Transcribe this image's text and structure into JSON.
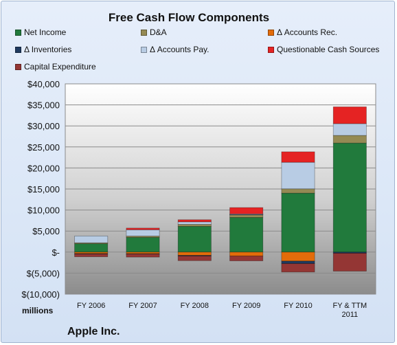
{
  "title": "Free Cash Flow Components",
  "units_label": "millions",
  "company": "Apple Inc.",
  "colors": {
    "net_income": "#217a3c",
    "da": "#948a54",
    "accounts_rec": "#e36c0a",
    "inventories": "#1f3a5f",
    "accounts_pay": "#b8cce4",
    "questionable": "#e52323",
    "capex": "#943634"
  },
  "legend": [
    {
      "name": "Net Income",
      "color_key": "net_income"
    },
    {
      "name": "D&A",
      "color_key": "da"
    },
    {
      "name": "Δ Accounts Rec.",
      "color_key": "accounts_rec"
    },
    {
      "name": "Δ Inventories",
      "color_key": "inventories"
    },
    {
      "name": "Δ Accounts Pay.",
      "color_key": "accounts_pay"
    },
    {
      "name": "Questionable Cash Sources",
      "color_key": "questionable"
    },
    {
      "name": "Capital Expenditure",
      "color_key": "capex"
    }
  ],
  "chart_data": {
    "type": "bar",
    "stacked": true,
    "title": "Free Cash Flow Components",
    "ylabel": "millions",
    "ylim": [
      -10000,
      40000
    ],
    "ytick_labels": [
      "$40,000",
      "$35,000",
      "$30,000",
      "$25,000",
      "$20,000",
      "$15,000",
      "$10,000",
      "$5,000",
      "$-",
      "$(5,000)",
      "$(10,000)"
    ],
    "yticks": [
      40000,
      35000,
      30000,
      25000,
      20000,
      15000,
      10000,
      5000,
      0,
      -5000,
      -10000
    ],
    "categories": [
      "FY 2006",
      "FY 2007",
      "FY 2008",
      "FY 2009",
      "FY 2010",
      "FY & TTM 2011"
    ],
    "grid": true,
    "legend_position": "top",
    "series": [
      {
        "name": "Net Income",
        "color_key": "net_income",
        "values": [
          1989,
          3496,
          6119,
          8235,
          14013,
          25922
        ]
      },
      {
        "name": "D&A",
        "color_key": "da",
        "values": [
          225,
          317,
          473,
          703,
          1027,
          1814
        ]
      },
      {
        "name": "Δ Accounts Rec.",
        "color_key": "accounts_rec",
        "values": [
          -357,
          -385,
          -785,
          -939,
          -2142,
          0
        ]
      },
      {
        "name": "Δ Inventories",
        "color_key": "inventories",
        "values": [
          -105,
          -76,
          -163,
          54,
          -596,
          -275
        ]
      },
      {
        "name": "Δ Accounts Pay.",
        "color_key": "accounts_pay",
        "values": [
          1611,
          1494,
          596,
          92,
          6307,
          2800
        ]
      },
      {
        "name": "Questionable Cash Sources",
        "color_key": "questionable",
        "values": [
          0,
          400,
          500,
          1500,
          2500,
          4000
        ]
      },
      {
        "name": "Capital Expenditure",
        "color_key": "capex",
        "values": [
          -657,
          -735,
          -1091,
          -1144,
          -2005,
          -4260
        ]
      }
    ]
  }
}
